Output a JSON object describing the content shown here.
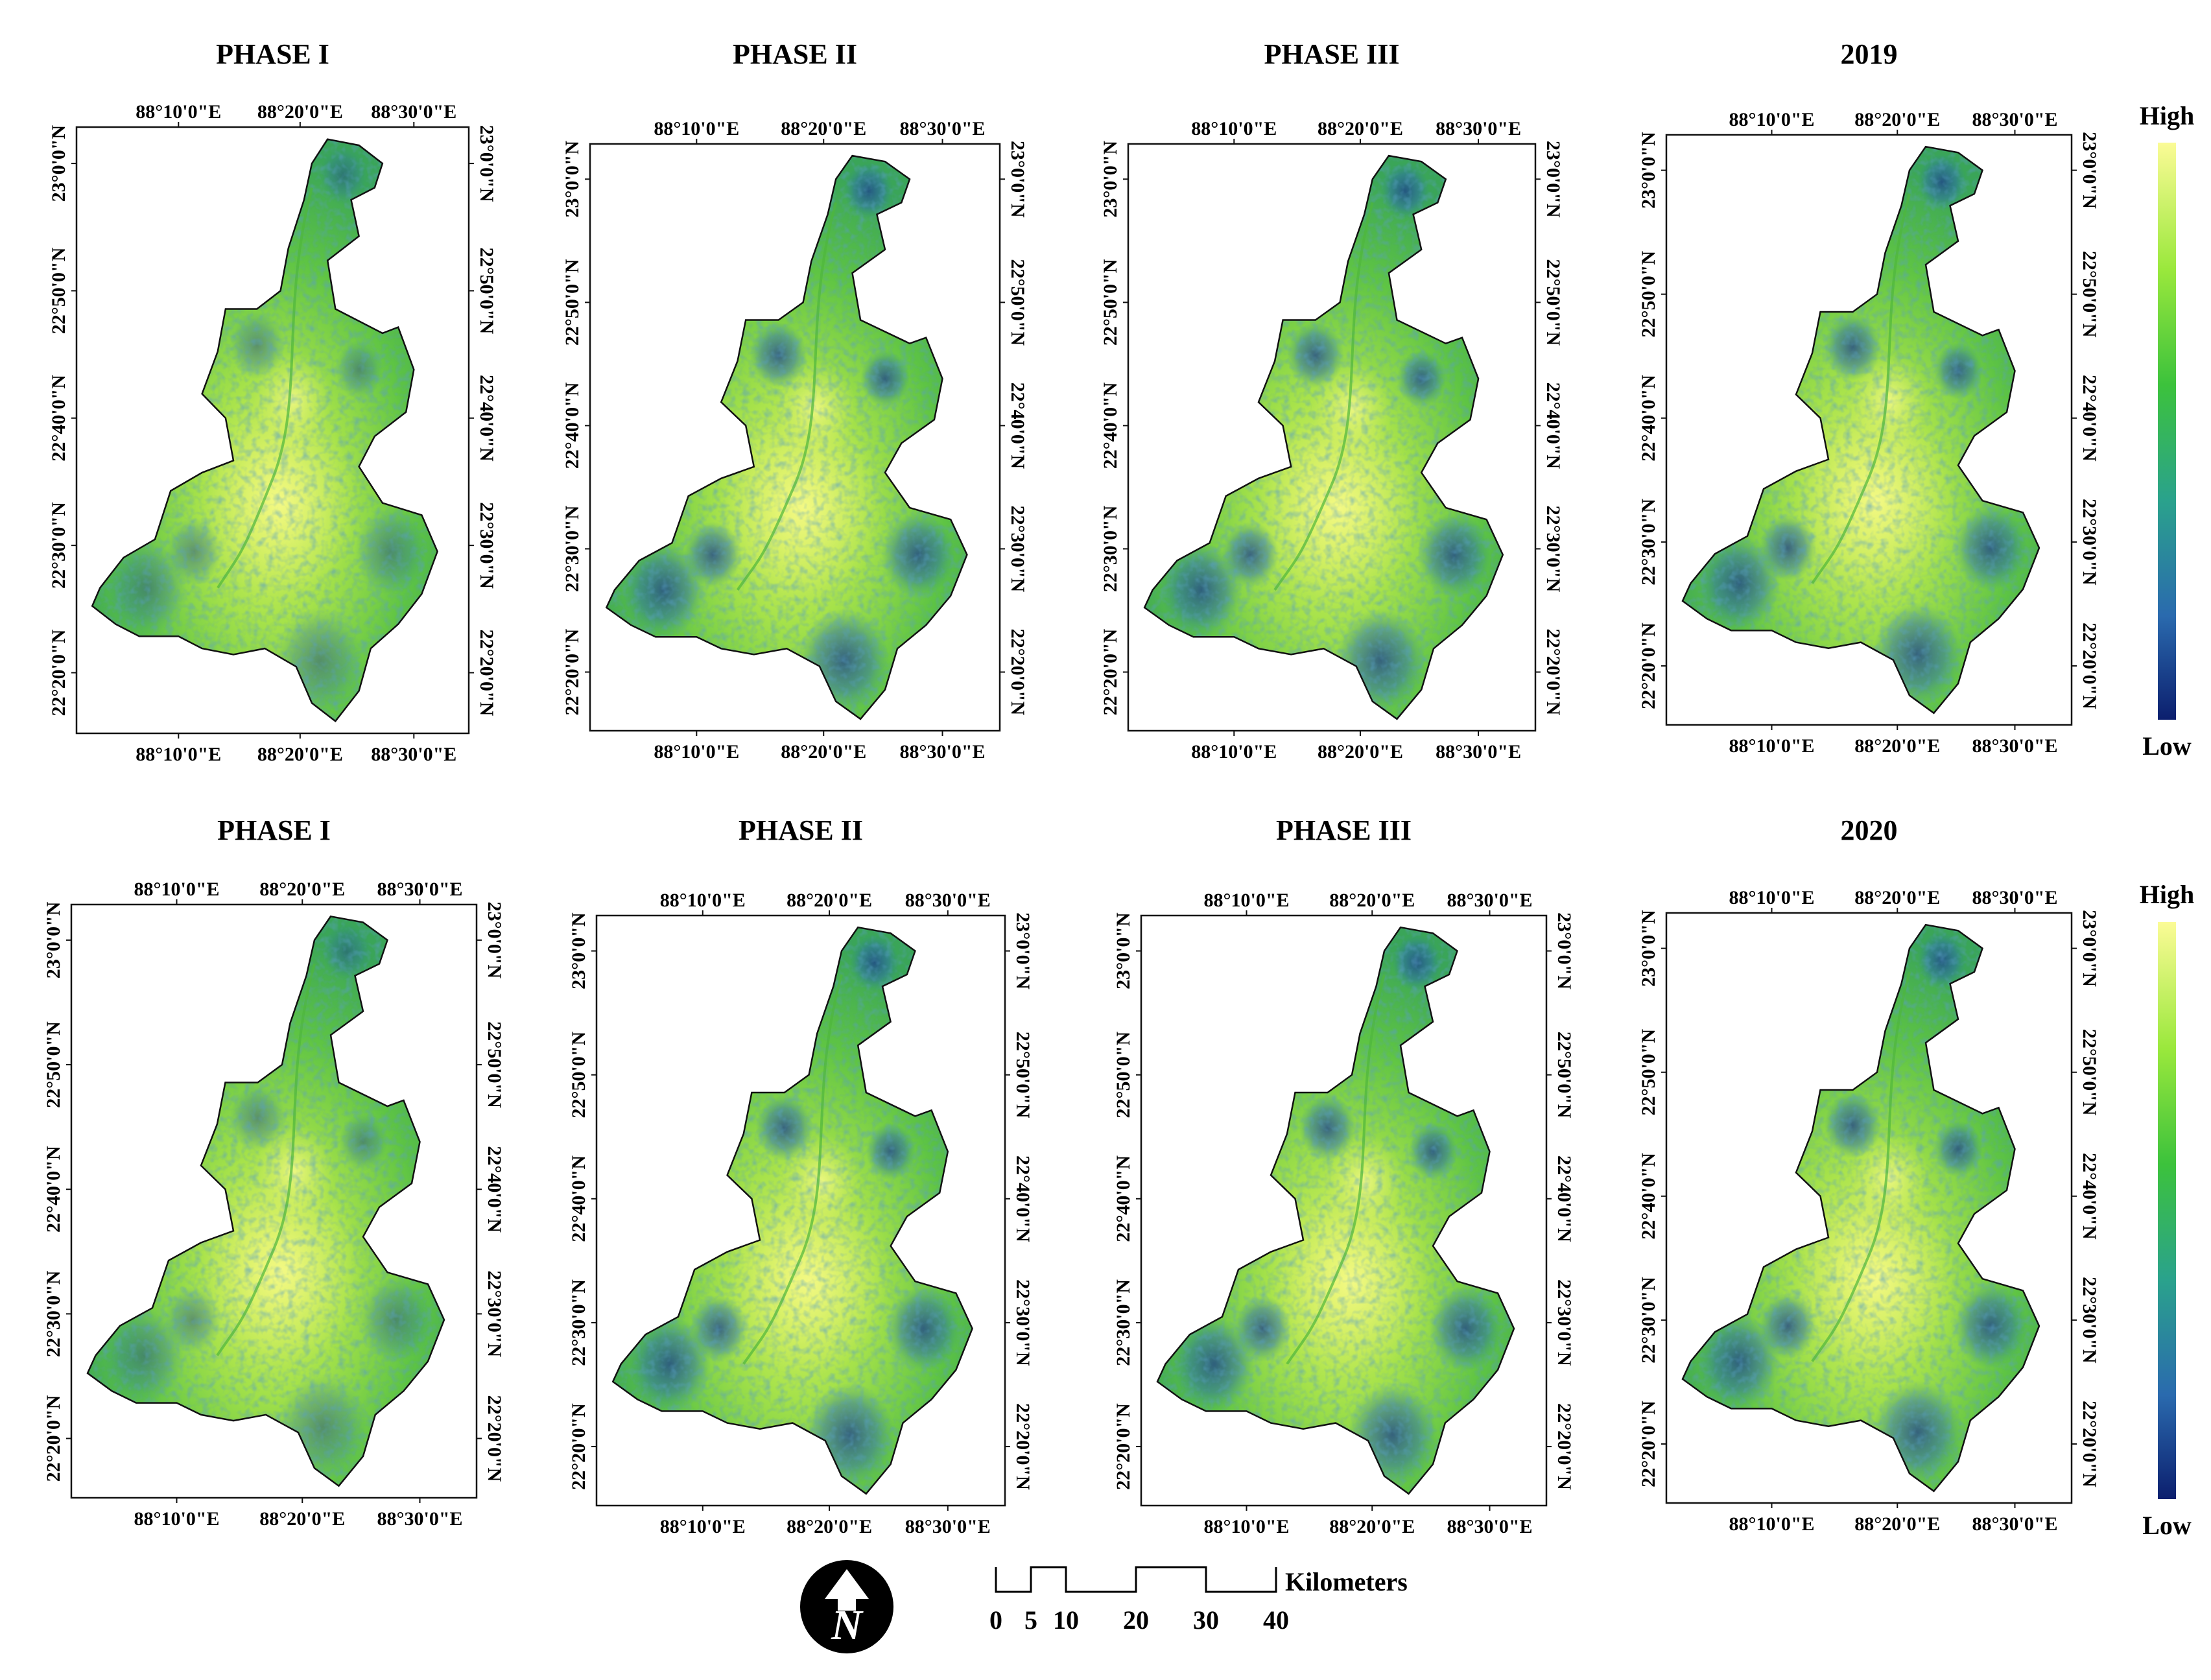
{
  "panels": [
    {
      "title": "PHASE I"
    },
    {
      "title": "PHASE II"
    },
    {
      "title": "PHASE III"
    },
    {
      "title": "2019"
    },
    {
      "title": "PHASE I"
    },
    {
      "title": "PHASE II"
    },
    {
      "title": "PHASE III"
    },
    {
      "title": "2020"
    }
  ],
  "lon_labels": [
    "88°10'0\"E",
    "88°20'0\"E",
    "88°30'0\"E"
  ],
  "lat_labels": [
    "23°0'0\"N",
    "22°50'0\"N",
    "22°40'0\"N",
    "22°30'0\"N",
    "22°20'0\"N"
  ],
  "legend": {
    "high_label": "High",
    "low_label": "Low",
    "colors": [
      "#fbfb96",
      "#9ae83c",
      "#3cc23c",
      "#2aa28c",
      "#2a6aae",
      "#0c1f6e"
    ]
  },
  "scale_bar": {
    "unit": "Kilometers",
    "ticks": [
      "0",
      "5",
      "10",
      "20",
      "30",
      "40"
    ]
  },
  "north_arrow": {
    "label": "N"
  },
  "colors": {
    "map_light": "#d8f060",
    "map_mid": "#7fd648",
    "map_dark": "#2b6fa6",
    "map_darkest": "#16307a",
    "outline": "#111111"
  }
}
